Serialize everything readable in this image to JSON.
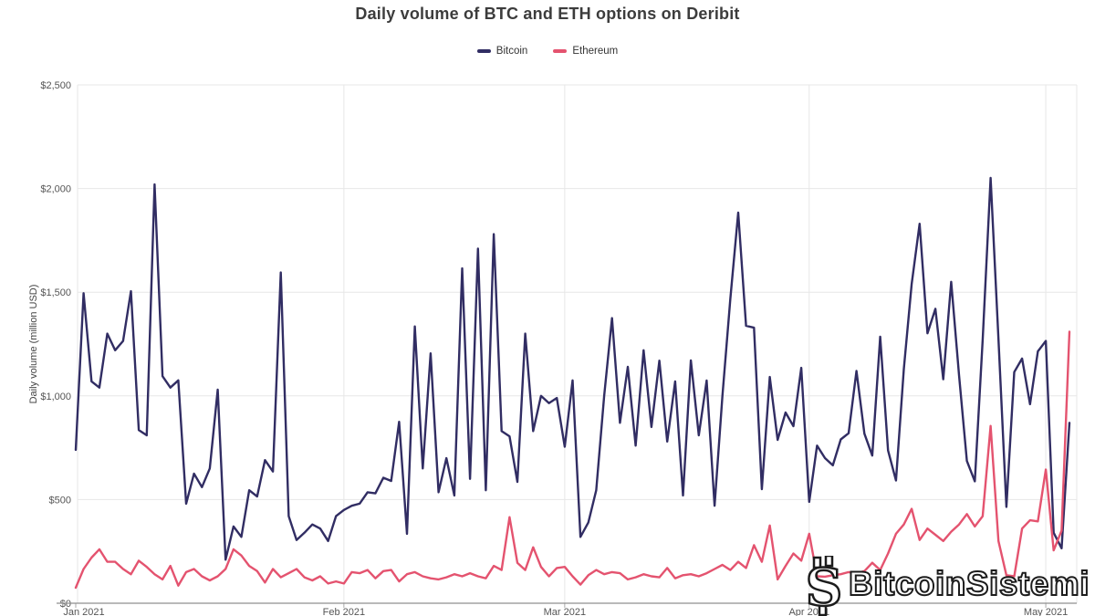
{
  "watermark": {
    "text": "BitcoinSistemi"
  },
  "chart_data": {
    "type": "line",
    "title": "Daily volume of BTC and ETH options on Deribit",
    "xlabel": "",
    "ylabel": "Daily volume (million USD)",
    "ylim": [
      0,
      2500
    ],
    "grid": true,
    "legend_position": "top-center",
    "x_unit": "day",
    "x_ticks": [
      {
        "i": 0,
        "label": "Jan 2021"
      },
      {
        "i": 34,
        "label": "Feb 2021"
      },
      {
        "i": 62,
        "label": "Mar 2021"
      },
      {
        "i": 93,
        "label": "Apr 2021"
      },
      {
        "i": 123,
        "label": "May 2021"
      }
    ],
    "y_ticks": [
      {
        "v": 0,
        "label": "$0"
      },
      {
        "v": 500,
        "label": "$500"
      },
      {
        "v": 1000,
        "label": "$1,000"
      },
      {
        "v": 1500,
        "label": "$1,500"
      },
      {
        "v": 2000,
        "label": "$2,000"
      },
      {
        "v": 2500,
        "label": "$2,500"
      }
    ],
    "series": [
      {
        "name": "Bitcoin",
        "color": "#312d63",
        "values": [
          740,
          1495,
          1070,
          1040,
          1300,
          1220,
          1265,
          1505,
          835,
          810,
          2020,
          1095,
          1040,
          1075,
          480,
          625,
          560,
          650,
          1030,
          210,
          370,
          320,
          545,
          515,
          690,
          635,
          1595,
          420,
          305,
          340,
          380,
          360,
          300,
          420,
          450,
          470,
          480,
          535,
          530,
          605,
          590,
          875,
          335,
          1335,
          650,
          1205,
          535,
          700,
          520,
          1615,
          600,
          1710,
          545,
          1780,
          830,
          805,
          585,
          1300,
          830,
          1000,
          965,
          990,
          755,
          1075,
          320,
          390,
          545,
          1000,
          1375,
          870,
          1140,
          760,
          1220,
          850,
          1170,
          780,
          1070,
          520,
          1171,
          810,
          1074,
          470,
          1000,
          1470,
          1884,
          1338,
          1329,
          550,
          1091,
          788,
          920,
          854,
          1135,
          489,
          760,
          700,
          665,
          790,
          820,
          1120,
          818,
          712,
          1285,
          737,
          592,
          1130,
          1540,
          1830,
          1302,
          1420,
          1080,
          1550,
          1100,
          686,
          588,
          1270,
          2051,
          1275,
          465,
          1115,
          1180,
          960,
          1215,
          1265,
          340,
          265,
          870
        ]
      },
      {
        "name": "Ethereum",
        "color": "#e4536f",
        "values": [
          75,
          165,
          220,
          260,
          200,
          200,
          165,
          140,
          205,
          175,
          140,
          115,
          180,
          85,
          150,
          165,
          130,
          110,
          130,
          165,
          260,
          230,
          180,
          155,
          100,
          165,
          125,
          145,
          165,
          125,
          110,
          130,
          95,
          105,
          95,
          150,
          145,
          160,
          120,
          155,
          160,
          105,
          140,
          150,
          130,
          120,
          115,
          125,
          140,
          130,
          145,
          130,
          120,
          180,
          160,
          415,
          195,
          160,
          270,
          175,
          130,
          170,
          175,
          130,
          90,
          135,
          160,
          140,
          150,
          145,
          115,
          125,
          140,
          130,
          125,
          170,
          120,
          135,
          140,
          130,
          145,
          165,
          185,
          160,
          200,
          170,
          280,
          200,
          375,
          115,
          180,
          240,
          205,
          335,
          130,
          128,
          135,
          140,
          150,
          145,
          155,
          195,
          160,
          240,
          335,
          380,
          455,
          305,
          360,
          330,
          300,
          345,
          380,
          430,
          370,
          420,
          855,
          300,
          135,
          130,
          360,
          400,
          395,
          645,
          255,
          350,
          1310
        ]
      }
    ],
    "colors": {
      "grid": "#e7e7e7",
      "axis": "#8f8f8f",
      "tick": "#ababab",
      "tick_text": "#555555",
      "title_text": "#3c3c3c"
    }
  }
}
